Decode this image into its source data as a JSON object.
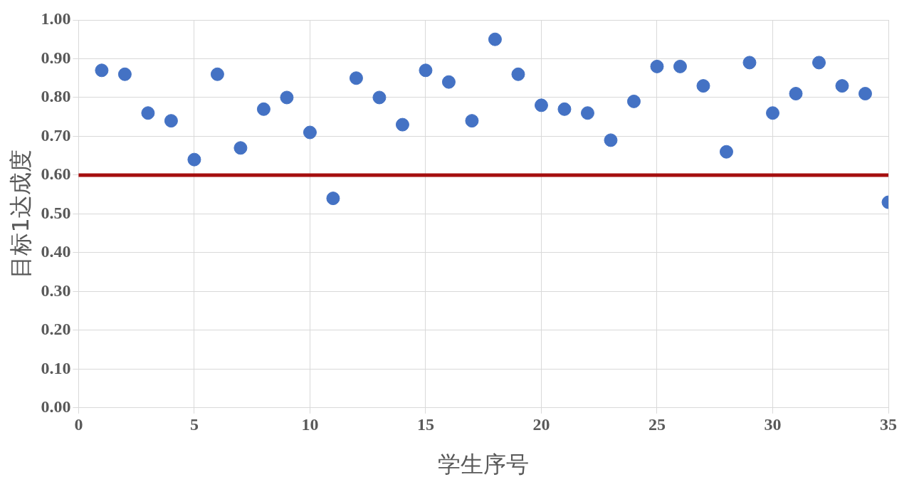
{
  "chart_data": {
    "type": "scatter",
    "xlabel": "学生序号",
    "ylabel": "目标1达成度",
    "x": [
      1,
      2,
      3,
      4,
      5,
      6,
      7,
      8,
      9,
      10,
      11,
      12,
      13,
      14,
      15,
      16,
      17,
      18,
      19,
      20,
      21,
      22,
      23,
      24,
      25,
      26,
      27,
      28,
      29,
      30,
      31,
      32,
      33,
      34,
      35
    ],
    "series": [
      {
        "color": "#4472c4",
        "values": [
          0.87,
          0.86,
          0.76,
          0.74,
          0.64,
          0.86,
          0.67,
          0.77,
          0.8,
          0.71,
          0.54,
          0.85,
          0.8,
          0.73,
          0.87,
          0.84,
          0.74,
          0.95,
          0.86,
          0.78,
          0.77,
          0.76,
          0.69,
          0.79,
          0.88,
          0.88,
          0.83,
          0.66,
          0.89,
          0.76,
          0.81,
          0.89,
          0.83,
          0.81,
          0.53
        ]
      }
    ],
    "ref_lines": [
      {
        "axis": "y",
        "value": 0.6,
        "color": "#a50f0f"
      }
    ],
    "xlim": [
      0,
      35
    ],
    "xticks": [
      0,
      5,
      10,
      15,
      20,
      25,
      30,
      35
    ],
    "ylim": [
      0,
      1
    ],
    "yticks": [
      {
        "value": 0,
        "label": "0.00"
      },
      {
        "value": 0.1,
        "label": "0.10"
      },
      {
        "value": 0.2,
        "label": "0.20"
      },
      {
        "value": 0.3,
        "label": "0.30"
      },
      {
        "value": 0.4,
        "label": "0.40"
      },
      {
        "value": 0.5,
        "label": "0.50"
      },
      {
        "value": 0.6,
        "label": "0.60"
      },
      {
        "value": 0.7,
        "label": "0.70"
      },
      {
        "value": 0.8,
        "label": "0.80"
      },
      {
        "value": 0.9,
        "label": "0.90"
      },
      {
        "value": 1,
        "label": "1.00"
      }
    ],
    "grid": true,
    "marker": "circle",
    "legend": false
  }
}
